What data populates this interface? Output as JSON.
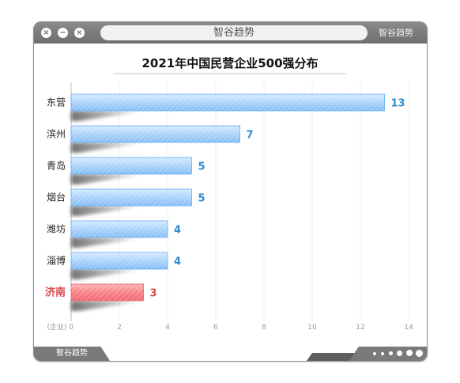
{
  "window": {
    "address_text": "智谷趋势",
    "brand_top": "智谷趋势",
    "brand_bottom": "智谷趋势"
  },
  "colors": {
    "bar_blue": "#a9d2fb",
    "bar_blue_edge": "#5ea8f0",
    "bar_red": "#f77f86",
    "value_blue": "#2b8ccf",
    "value_red": "#d94b52",
    "highlight_label": "#d94b52"
  },
  "chart_data": {
    "type": "bar",
    "orientation": "horizontal",
    "title": "2021年中国民营企业500强分布",
    "categories": [
      "东营",
      "滨州",
      "青岛",
      "烟台",
      "潍坊",
      "淄博",
      "济南"
    ],
    "values": [
      13,
      7,
      5,
      5,
      4,
      4,
      3
    ],
    "highlight": "济南",
    "xlabel": "(企业)",
    "xlim": [
      0,
      14
    ],
    "xticks": [
      0,
      2,
      4,
      6,
      8,
      10,
      12,
      14
    ],
    "grid": true
  }
}
